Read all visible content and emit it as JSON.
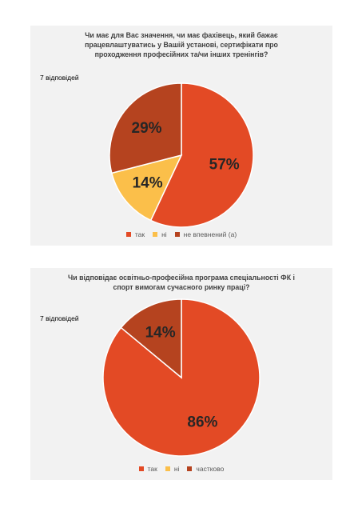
{
  "chart_data": [
    {
      "type": "pie",
      "title_lines": [
        "Чи має для Вас значення, чи має фахівець, який бажає",
        "працевлаштуватись у Вашій установі, сертифікати про",
        "проходження професійних та/чи інших тренінгів?"
      ],
      "responses": "7 відповідей",
      "categories": [
        "так",
        "ні",
        "не впевнений (а)"
      ],
      "values": [
        57,
        14,
        29
      ],
      "data_labels": [
        "57%",
        "14%",
        "29%"
      ],
      "colors": [
        "#e34a25",
        "#fbbf4a",
        "#b5431f"
      ]
    },
    {
      "type": "pie",
      "title_lines": [
        "Чи відповідає освітньо-професійна програма спеціальності ФК і",
        "спорт вимогам сучасного ринку праці?"
      ],
      "responses": "7 відповідей",
      "categories": [
        "так",
        "ні",
        "частково"
      ],
      "values": [
        86,
        0,
        14
      ],
      "data_labels": [
        "86%",
        "",
        "14%"
      ],
      "colors": [
        "#e34a25",
        "#fbbf4a",
        "#b5431f"
      ]
    }
  ]
}
